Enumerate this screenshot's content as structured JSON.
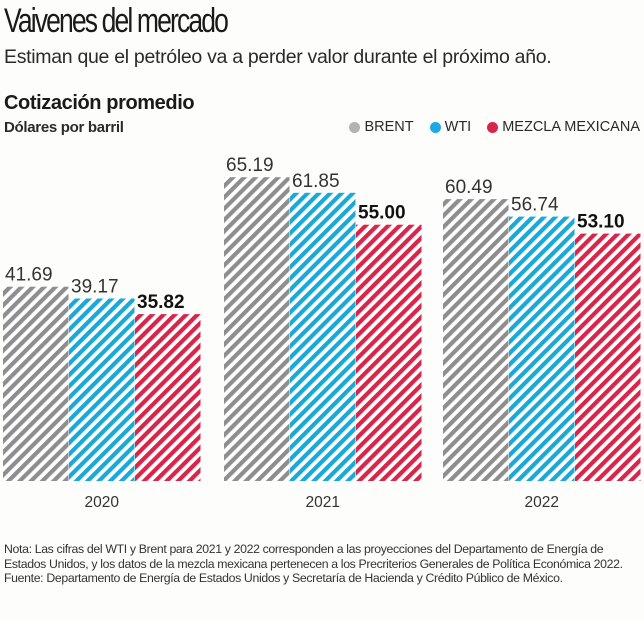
{
  "header": {
    "title": "Vaivenes del mercado",
    "subtitle": "Estiman que el petróleo va a perder valor durante el próximo año."
  },
  "chart_data": {
    "type": "bar",
    "title": "Cotización promedio",
    "ylabel": "Dólares por barril",
    "xlabel": "",
    "categories": [
      "2020",
      "2021",
      "2022"
    ],
    "series": [
      {
        "name": "BRENT",
        "color": "#8e8e8e",
        "values": [
          41.69,
          65.19,
          60.49
        ],
        "labels": [
          "41.69",
          "65.19",
          "60.49"
        ],
        "bold_labels": false
      },
      {
        "name": "WTI",
        "color": "#1aa9d6",
        "values": [
          39.17,
          61.85,
          56.74
        ],
        "labels": [
          "39.17",
          "61.85",
          "56.74"
        ],
        "bold_labels": false
      },
      {
        "name": "MEZCLA MEXICANA",
        "color": "#d8264a",
        "values": [
          35.82,
          55.0,
          53.1
        ],
        "labels": [
          "35.82",
          "55.00",
          "53.10"
        ],
        "bold_labels": true
      }
    ],
    "ylim": [
      0,
      70
    ],
    "grid": false,
    "legend_position": "top-right",
    "bar_fill": "diagonal-hatch"
  },
  "legend": [
    {
      "label": "BRENT",
      "color": "#b3b3b3"
    },
    {
      "label": "WTI",
      "color": "#1aa9e6"
    },
    {
      "label": "MEZCLA MEXICANA",
      "color": "#d8264a"
    }
  ],
  "footer": {
    "note": "Nota: Las cifras del WTI y Brent para 2021 y 2022 corresponden a las proyecciones del Departamento de Energía de Estados Unidos, y los datos de la mezcla mexicana pertenecen a los Precriterios Generales de Política Económica 2022. Fuente: Departamento de Energía de Estados Unidos y Secretaría de Hacienda y Crédito Público de México."
  }
}
